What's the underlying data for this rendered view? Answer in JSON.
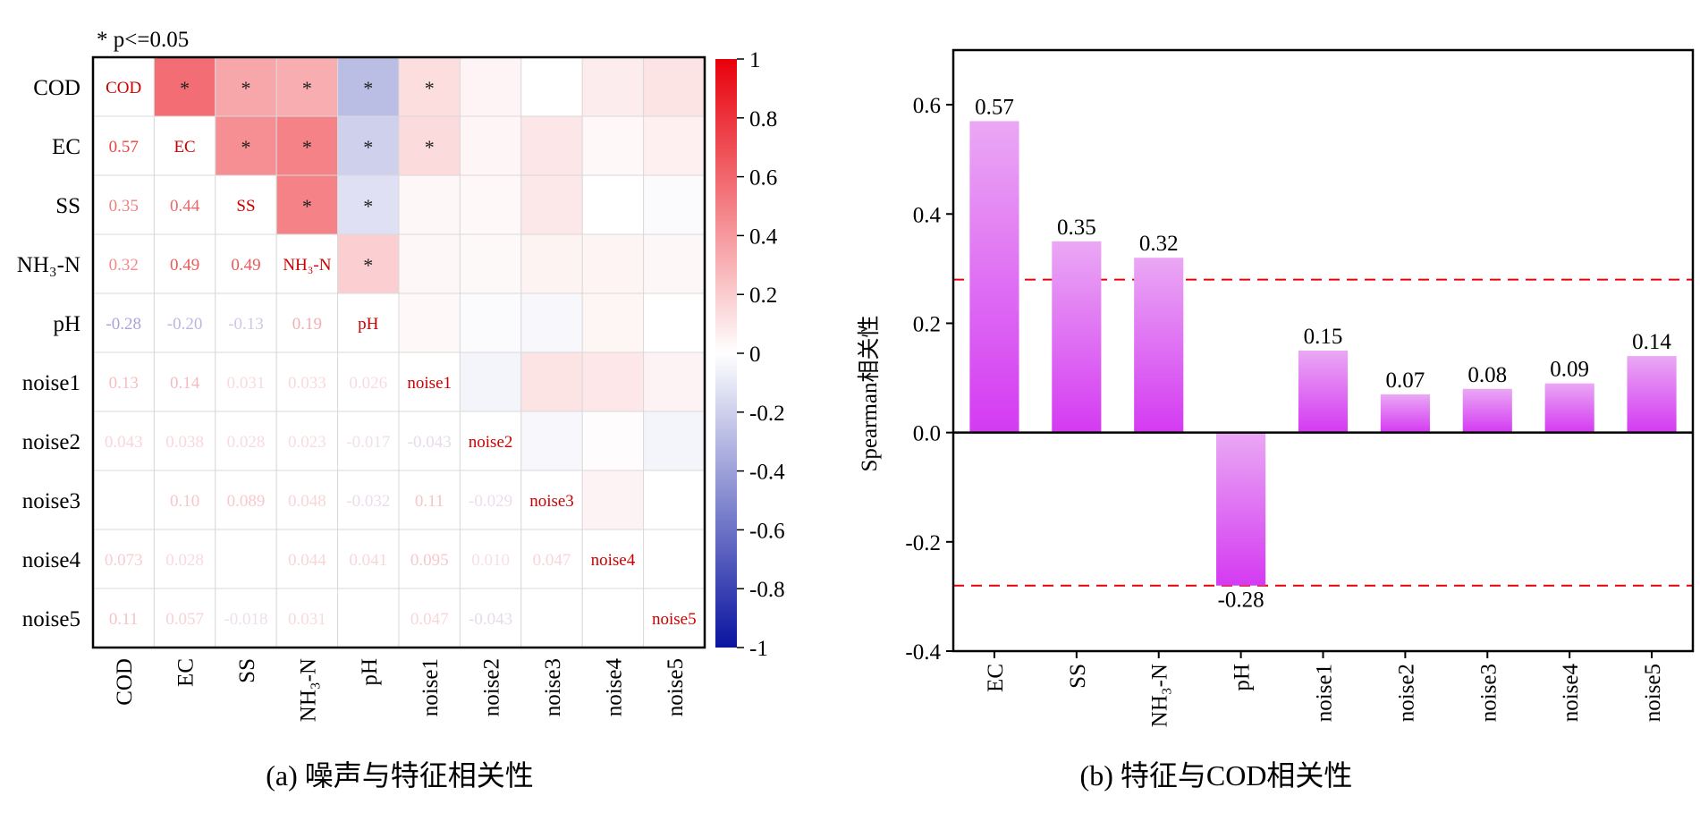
{
  "colors": {
    "positive": "#e8000b",
    "negative": "#0a14a0",
    "diag_text": "#cc0000",
    "bar_top": "#eaa8f4",
    "bar_bottom": "#d43af2",
    "threshold": "#e8000b"
  },
  "chart_data": [
    {
      "type": "heatmap",
      "title": "(a) 噪声与特征相关性",
      "note": "* p<=0.05",
      "labels": [
        "COD",
        "EC",
        "SS",
        "NH₃-N",
        "pH",
        "noise1",
        "noise2",
        "noise3",
        "noise4",
        "noise5"
      ],
      "matrix": [
        [
          1,
          0.57,
          0.35,
          0.32,
          -0.28,
          0.13,
          0.043,
          0.0,
          0.073,
          0.11
        ],
        [
          0.57,
          1,
          0.44,
          0.49,
          -0.2,
          0.14,
          0.038,
          0.1,
          0.028,
          0.057
        ],
        [
          0.35,
          0.44,
          1,
          0.49,
          -0.13,
          0.031,
          0.028,
          0.089,
          0.0,
          -0.018
        ],
        [
          0.32,
          0.49,
          0.49,
          1,
          0.19,
          0.033,
          0.023,
          0.048,
          0.044,
          0.031
        ],
        [
          -0.28,
          -0.2,
          -0.13,
          0.19,
          1,
          0.026,
          -0.017,
          -0.032,
          0.041,
          0.0
        ],
        [
          0.13,
          0.14,
          0.031,
          0.033,
          0.026,
          1,
          -0.043,
          0.11,
          0.095,
          0.047
        ],
        [
          0.043,
          0.038,
          0.028,
          0.023,
          -0.017,
          -0.043,
          1,
          -0.029,
          0.01,
          -0.043
        ],
        [
          0.0,
          0.1,
          0.089,
          0.048,
          -0.032,
          0.11,
          -0.029,
          1,
          0.047,
          0.0
        ],
        [
          0.073,
          0.028,
          0.0,
          0.044,
          0.041,
          0.095,
          0.01,
          0.047,
          1,
          0.0
        ],
        [
          0.11,
          0.057,
          -0.018,
          0.031,
          0.0,
          0.047,
          -0.043,
          0.0,
          0.0,
          1
        ]
      ],
      "lower_labels": [
        [
          null,
          null,
          null,
          null,
          null,
          null,
          null,
          null,
          null,
          null
        ],
        [
          "0.57",
          null,
          null,
          null,
          null,
          null,
          null,
          null,
          null,
          null
        ],
        [
          "0.35",
          "0.44",
          null,
          null,
          null,
          null,
          null,
          null,
          null,
          null
        ],
        [
          "0.32",
          "0.49",
          "0.49",
          null,
          null,
          null,
          null,
          null,
          null,
          null
        ],
        [
          "-0.28",
          "-0.20",
          "-0.13",
          "0.19",
          null,
          null,
          null,
          null,
          null,
          null
        ],
        [
          "0.13",
          "0.14",
          "0.031",
          "0.033",
          "0.026",
          null,
          null,
          null,
          null,
          null
        ],
        [
          "0.043",
          "0.038",
          "0.028",
          "0.023",
          "-0.017",
          "-0.043",
          null,
          null,
          null,
          null
        ],
        [
          "",
          "0.10",
          "0.089",
          "0.048",
          "-0.032",
          "0.11",
          "-0.029",
          null,
          null,
          null
        ],
        [
          "0.073",
          "0.028",
          "",
          "0.044",
          "0.041",
          "0.095",
          "0.010",
          "0.047",
          null,
          null
        ],
        [
          "0.11",
          "0.057",
          "-0.018",
          "0.031",
          "",
          "0.047",
          "-0.043",
          "",
          "",
          null
        ]
      ],
      "significant": [
        [
          0,
          1
        ],
        [
          0,
          2
        ],
        [
          0,
          3
        ],
        [
          0,
          4
        ],
        [
          0,
          5
        ],
        [
          1,
          2
        ],
        [
          1,
          3
        ],
        [
          1,
          4
        ],
        [
          1,
          5
        ],
        [
          2,
          3
        ],
        [
          2,
          4
        ],
        [
          3,
          4
        ]
      ],
      "significance_mark": "*",
      "colorbar": {
        "range": [
          -1,
          1
        ],
        "ticks": [
          "1",
          "0.8",
          "0.6",
          "0.4",
          "0.2",
          "0",
          "-0.2",
          "-0.4",
          "-0.6",
          "-0.8",
          "-1"
        ]
      }
    },
    {
      "type": "bar",
      "title": "(b) 特征与COD相关性",
      "categories": [
        "EC",
        "SS",
        "NH₃-N",
        "pH",
        "noise1",
        "noise2",
        "noise3",
        "noise4",
        "noise5"
      ],
      "values": [
        0.57,
        0.35,
        0.32,
        -0.28,
        0.15,
        0.07,
        0.08,
        0.09,
        0.14
      ],
      "value_labels": [
        "0.57",
        "0.35",
        "0.32",
        "-0.28",
        "0.15",
        "0.07",
        "0.08",
        "0.09",
        "0.14"
      ],
      "ylabel": "Spearman相关性",
      "ylim": [
        -0.4,
        0.7
      ],
      "yticks": [
        "0.6",
        "0.4",
        "0.2",
        "0.0",
        "-0.2",
        "-0.4"
      ],
      "threshold_lines": [
        0.28,
        -0.28
      ]
    }
  ]
}
